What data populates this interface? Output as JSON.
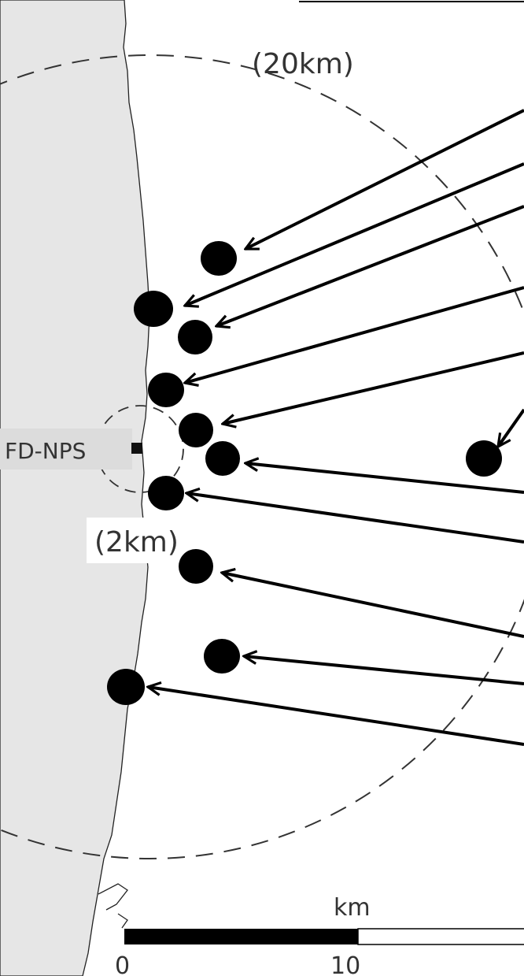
{
  "map": {
    "labels": {
      "outer_radius": "(20km)",
      "inner_radius": "(2km)",
      "plant": "FD-NPS"
    },
    "scale_bar": {
      "unit": "km",
      "ticks": [
        "0",
        "10"
      ]
    },
    "colors": {
      "land": "#e6e6e6",
      "sea": "#ffffff",
      "marker": "#000000",
      "circle": "#333333"
    }
  }
}
